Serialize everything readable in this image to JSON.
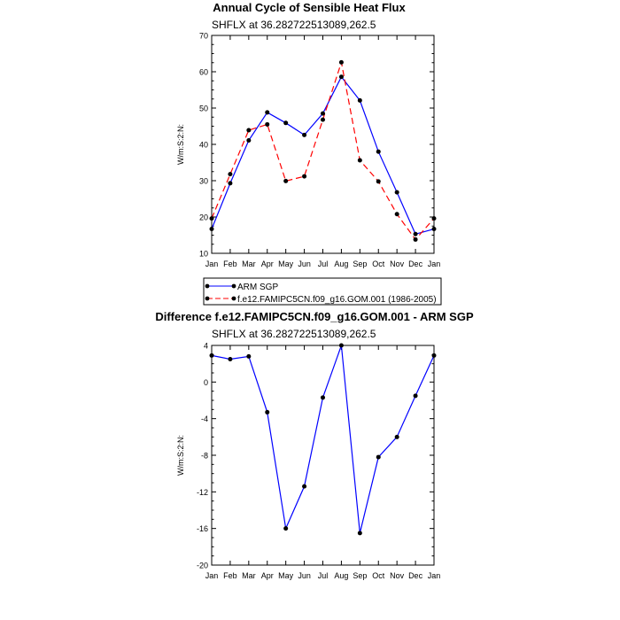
{
  "colors": {
    "obs": "#0000ff",
    "model": "#ff0000",
    "diff": "#0000ff",
    "marker": "#000000",
    "axis": "#000000"
  },
  "chart_data": [
    {
      "type": "line",
      "title": "Annual Cycle of Sensible Heat Flux",
      "subtitle": "SHFLX at 36.282722513089,262.5",
      "ylabel": "W/m:S:2:N:",
      "xlabel": "",
      "categories": [
        "Jan",
        "Feb",
        "Mar",
        "Apr",
        "May",
        "Jun",
        "Jul",
        "Aug",
        "Sep",
        "Oct",
        "Nov",
        "Dec",
        "Jan"
      ],
      "ylim": [
        10,
        70
      ],
      "yticks": [
        10,
        20,
        30,
        40,
        50,
        60,
        70
      ],
      "legend_position": "bottom",
      "series": [
        {
          "name": "ARM SGP",
          "style": "solid",
          "color": "#0000ff",
          "values": [
            16.7,
            29.3,
            41.1,
            48.8,
            45.9,
            42.6,
            48.5,
            58.6,
            52.1,
            38.0,
            26.8,
            15.3,
            16.7
          ]
        },
        {
          "name": "f.e12.FAMIPC5CN.f09_g16.GOM.001 (1986-2005)",
          "style": "dashed",
          "color": "#ff0000",
          "values": [
            19.6,
            31.8,
            43.9,
            45.5,
            29.9,
            31.2,
            46.8,
            62.6,
            35.6,
            29.8,
            20.8,
            13.8,
            19.6
          ]
        }
      ]
    },
    {
      "type": "line",
      "title": "Difference f.e12.FAMIPC5CN.f09_g16.GOM.001 - ARM SGP",
      "subtitle": "SHFLX at 36.282722513089,262.5",
      "ylabel": "W/m:S:2:N:",
      "xlabel": "",
      "categories": [
        "Jan",
        "Feb",
        "Mar",
        "Apr",
        "May",
        "Jun",
        "Jul",
        "Aug",
        "Sep",
        "Oct",
        "Nov",
        "Dec",
        "Jan"
      ],
      "ylim": [
        -20,
        4
      ],
      "yticks": [
        -20,
        -16,
        -12,
        -8,
        -4,
        0,
        4
      ],
      "series": [
        {
          "style": "solid",
          "color": "#0000ff",
          "values": [
            2.9,
            2.5,
            2.8,
            -3.3,
            -16.0,
            -11.4,
            -1.7,
            4.0,
            -16.5,
            -8.2,
            -6.0,
            -1.5,
            2.9
          ]
        }
      ]
    }
  ]
}
